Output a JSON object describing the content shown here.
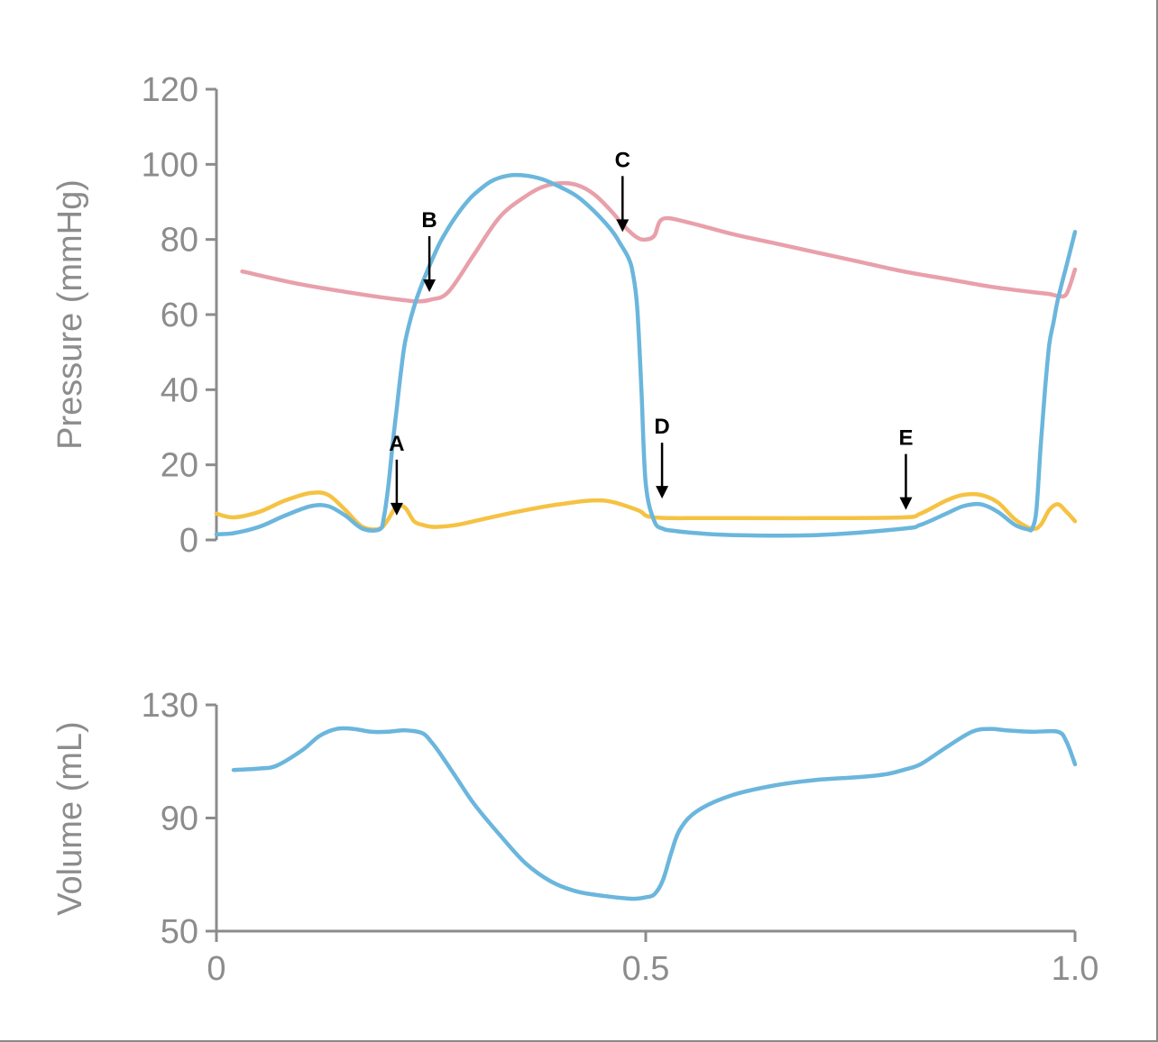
{
  "chart_data": [
    {
      "type": "line",
      "title": "",
      "ylabel": "Pressure (mmHg)",
      "xlabel": "",
      "xlim": [
        0,
        1.0
      ],
      "ylim": [
        0,
        120
      ],
      "yticks": [
        0,
        20,
        40,
        60,
        80,
        100,
        120
      ],
      "ytick_labels": [
        "0",
        "20",
        "40",
        "60",
        "80",
        "100",
        "120"
      ],
      "grid": false,
      "legend": "none",
      "series": [
        {
          "color": "#e8a0aa",
          "x": [
            0.03,
            0.1,
            0.18,
            0.22,
            0.235,
            0.25,
            0.27,
            0.3,
            0.33,
            0.36,
            0.38,
            0.4,
            0.42,
            0.44,
            0.46,
            0.475,
            0.49,
            0.5,
            0.51,
            0.52,
            0.55,
            0.6,
            0.65,
            0.7,
            0.75,
            0.8,
            0.85,
            0.9,
            0.95,
            0.97,
            0.98,
            0.99,
            1.0
          ],
          "y": [
            71.5,
            68,
            65,
            63.8,
            63.5,
            64,
            66,
            76,
            86,
            91.5,
            94,
            95,
            94.5,
            92,
            87.5,
            83.5,
            80.5,
            80,
            81,
            85.5,
            84.5,
            81.5,
            79,
            76.5,
            74,
            71.5,
            69.5,
            67.5,
            66,
            65.5,
            65,
            65.5,
            72
          ]
        },
        {
          "color": "#f5c242",
          "x": [
            0.0,
            0.02,
            0.05,
            0.08,
            0.11,
            0.13,
            0.15,
            0.17,
            0.19,
            0.2,
            0.21,
            0.22,
            0.23,
            0.24,
            0.25,
            0.26,
            0.28,
            0.31,
            0.35,
            0.4,
            0.45,
            0.49,
            0.5,
            0.51,
            0.53,
            0.55,
            0.6,
            0.7,
            0.8,
            0.82,
            0.85,
            0.87,
            0.89,
            0.91,
            0.93,
            0.95,
            0.96,
            0.97,
            0.98,
            0.99,
            1.0
          ],
          "y": [
            7,
            6,
            7.5,
            10.5,
            12.5,
            12,
            8,
            3.5,
            3,
            5.5,
            9,
            8.5,
            5,
            4,
            3.5,
            3.5,
            4,
            5.5,
            7.5,
            9.5,
            10.5,
            8,
            6.5,
            6,
            5.8,
            5.8,
            5.8,
            5.8,
            6,
            7,
            10.5,
            12,
            12,
            10,
            5.5,
            3,
            4,
            8,
            9.5,
            7.5,
            5
          ]
        },
        {
          "color": "#6bb6dc",
          "x": [
            0.0,
            0.02,
            0.05,
            0.08,
            0.11,
            0.13,
            0.15,
            0.17,
            0.19,
            0.195,
            0.2,
            0.205,
            0.21,
            0.215,
            0.22,
            0.23,
            0.24,
            0.25,
            0.26,
            0.27,
            0.28,
            0.29,
            0.3,
            0.32,
            0.34,
            0.36,
            0.38,
            0.4,
            0.42,
            0.44,
            0.46,
            0.47,
            0.48,
            0.485,
            0.49,
            0.495,
            0.5,
            0.51,
            0.52,
            0.53,
            0.55,
            0.6,
            0.7,
            0.8,
            0.82,
            0.85,
            0.87,
            0.89,
            0.91,
            0.93,
            0.945,
            0.95,
            0.955,
            0.96,
            0.965,
            0.97,
            0.975,
            0.98,
            0.99,
            1.0
          ],
          "y": [
            1.5,
            1.8,
            3.5,
            6.5,
            9,
            9,
            6.5,
            3,
            2.8,
            6,
            14,
            25,
            35,
            45,
            53,
            62,
            68.5,
            74,
            79,
            83,
            86.5,
            89.5,
            92,
            95.5,
            97,
            97,
            96,
            94,
            91.5,
            87.5,
            82.5,
            79,
            75,
            71,
            62,
            40,
            15,
            5,
            3,
            2.5,
            2,
            1.3,
            1.3,
            3,
            4,
            7,
            9,
            9.5,
            7.5,
            4,
            2.8,
            3,
            8,
            25,
            40,
            52,
            58,
            64,
            73,
            82
          ]
        }
      ],
      "annotations": [
        {
          "label": "A",
          "x": 0.21,
          "y": 6.5
        },
        {
          "label": "B",
          "x": 0.248,
          "y": 66
        },
        {
          "label": "C",
          "x": 0.473,
          "y": 82
        },
        {
          "label": "D",
          "x": 0.519,
          "y": 11
        },
        {
          "label": "E",
          "x": 0.803,
          "y": 8
        }
      ]
    },
    {
      "type": "line",
      "title": "",
      "ylabel": "Volume (mL)",
      "xlabel": "",
      "xlim": [
        0,
        1.0
      ],
      "ylim": [
        50,
        130
      ],
      "yticks": [
        50,
        90,
        130
      ],
      "ytick_labels": [
        "50",
        "90",
        "130"
      ],
      "xticks": [
        0,
        0.5,
        1.0
      ],
      "xtick_labels": [
        "0",
        "0.5",
        "1.0"
      ],
      "grid": false,
      "legend": "none",
      "series": [
        {
          "color": "#6bb6dc",
          "x": [
            0.02,
            0.05,
            0.07,
            0.1,
            0.12,
            0.14,
            0.16,
            0.18,
            0.2,
            0.22,
            0.24,
            0.25,
            0.26,
            0.28,
            0.3,
            0.33,
            0.36,
            0.39,
            0.42,
            0.45,
            0.48,
            0.49,
            0.5,
            0.51,
            0.52,
            0.53,
            0.54,
            0.56,
            0.6,
            0.65,
            0.7,
            0.75,
            0.78,
            0.8,
            0.82,
            0.85,
            0.88,
            0.9,
            0.92,
            0.95,
            0.98,
            0.99,
            1.0
          ],
          "y": [
            107,
            107.5,
            108.5,
            114,
            119,
            121.5,
            121.5,
            120.5,
            120.5,
            121,
            120,
            117,
            113,
            104,
            95,
            84,
            74,
            67.5,
            64,
            62.5,
            61.5,
            61.5,
            62,
            63,
            68,
            78,
            86,
            92.5,
            98,
            101.5,
            103.5,
            104.5,
            105.5,
            107,
            109,
            115,
            120.5,
            121.5,
            121,
            120.5,
            120.5,
            117,
            109
          ]
        }
      ]
    }
  ]
}
